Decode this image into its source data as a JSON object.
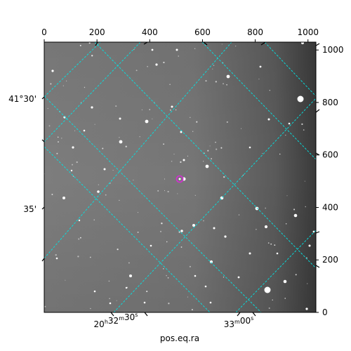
{
  "chart_data": {
    "type": "image",
    "xlabel": "pos.eq.ra",
    "top_x_ticks": [
      "0",
      "200",
      "400",
      "600",
      "800",
      "1000"
    ],
    "top_x_values": [
      0,
      200,
      400,
      600,
      800,
      1000
    ],
    "right_y_ticks": [
      "0",
      "200",
      "400",
      "600",
      "800",
      "1000"
    ],
    "right_y_values": [
      0,
      200,
      400,
      600,
      800,
      1000
    ],
    "pixel_range": [
      0,
      1030
    ],
    "ra_ticks": [
      {
        "h": "20",
        "m": "32",
        "s": "30",
        "text": "20h32m30s"
      },
      {
        "h": "",
        "m": "33",
        "s": "00",
        "text": "33m00s"
      }
    ],
    "dec_ticks": [
      "41°30'",
      "35'"
    ],
    "grid": true,
    "grid_color": "#00e5e5",
    "marker_color": "#cc33cc",
    "background": "grayscale star field"
  }
}
